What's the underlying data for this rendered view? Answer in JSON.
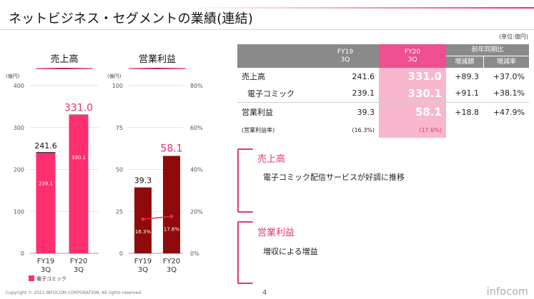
{
  "title": "ネットビジネス・セグメントの業績(連結)",
  "unit_note": "(単位:億円)",
  "colors": {
    "accent": "#e6306f",
    "bar_sales": "#ff2e6e",
    "bar_profit": "#8f0a0a",
    "highlight": "#f8b7ce",
    "header_gray": "#8a8a8a"
  },
  "chart_data": [
    {
      "type": "bar",
      "title": "売上高",
      "ylabel": "(億円)",
      "ylim": [
        0,
        400
      ],
      "yticks": [
        "0",
        "100",
        "200",
        "300",
        "400"
      ],
      "categories": [
        "FY19\n3Q",
        "FY20\n3Q"
      ],
      "series": [
        {
          "name": "電子コミック",
          "values": [
            239.1,
            330.1
          ],
          "labels": [
            "239.1",
            "330.1"
          ]
        }
      ],
      "totals": [
        241.6,
        331.0
      ],
      "total_labels": [
        "241.6",
        "331.0"
      ],
      "legend": "電子コミック"
    },
    {
      "type": "bar",
      "title": "営業利益",
      "ylabel": "(億円)",
      "ylim": [
        0,
        100
      ],
      "yticks": [
        "0",
        "25",
        "50",
        "75",
        "100"
      ],
      "y2ticks": [
        "0%",
        "20%",
        "40%",
        "60%",
        "80%"
      ],
      "y2lim": [
        0,
        80
      ],
      "categories": [
        "FY19\n3Q",
        "FY20\n3Q"
      ],
      "values": [
        39.3,
        58.1
      ],
      "value_labels": [
        "39.3",
        "58.1"
      ],
      "line": {
        "name": "営業利益率",
        "values": [
          16.3,
          17.6
        ],
        "labels": [
          "16.3%",
          "17.6%"
        ]
      }
    }
  ],
  "table": {
    "header": {
      "fy19": "FY19\n3Q",
      "fy20": "FY20\n3Q",
      "yoy": "前年同期比",
      "diff": "増減額",
      "rate": "増減率"
    },
    "rows": [
      {
        "label": "売上高",
        "fy19": "241.6",
        "fy20": "331.0",
        "diff": "+89.3",
        "rate": "+37.0%"
      },
      {
        "label": "電子コミック",
        "fy19": "239.1",
        "fy20": "330.1",
        "diff": "+91.1",
        "rate": "+38.1%"
      },
      {
        "label": "営業利益",
        "fy19": "39.3",
        "fy20": "58.1",
        "diff": "+18.8",
        "rate": "+47.9%"
      },
      {
        "label": "(営業利益率)",
        "fy19": "(16.3%)",
        "fy20": "(17.6%)",
        "diff": "",
        "rate": ""
      }
    ]
  },
  "notes": [
    {
      "title": "売上高",
      "text": "電子コミック配信サービスが好調に推移"
    },
    {
      "title": "営業利益",
      "text": "増収による増益"
    }
  ],
  "footer": {
    "copyright": "Copyright © 2021 INFOCOM CORPORATION. All rights reserved.",
    "page": "4",
    "logo": "infocom"
  }
}
